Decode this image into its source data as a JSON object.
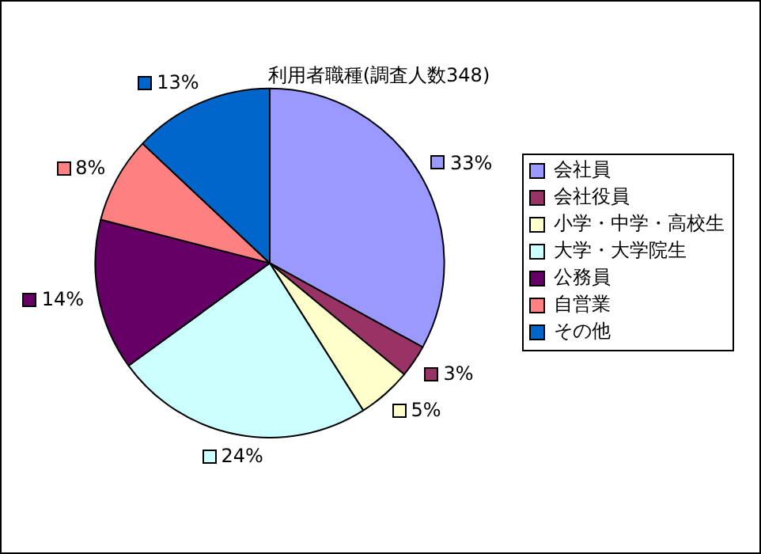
{
  "chart_data": {
    "type": "pie",
    "title": "利用者職種(調査人数348)",
    "categories": [
      "会社員",
      "会社役員",
      "小学・中学・高校生",
      "大学・大学院生",
      "公務員",
      "自営業",
      "その他"
    ],
    "values": [
      33,
      3,
      5,
      24,
      14,
      8,
      13
    ],
    "colors": [
      "#9999ff",
      "#993366",
      "#ffffcc",
      "#ccffff",
      "#660066",
      "#ff8080",
      "#0066cc"
    ],
    "value_labels": [
      "33%",
      "3%",
      "5%",
      "24%",
      "14%",
      "8%",
      "13%"
    ],
    "legend": "right"
  }
}
